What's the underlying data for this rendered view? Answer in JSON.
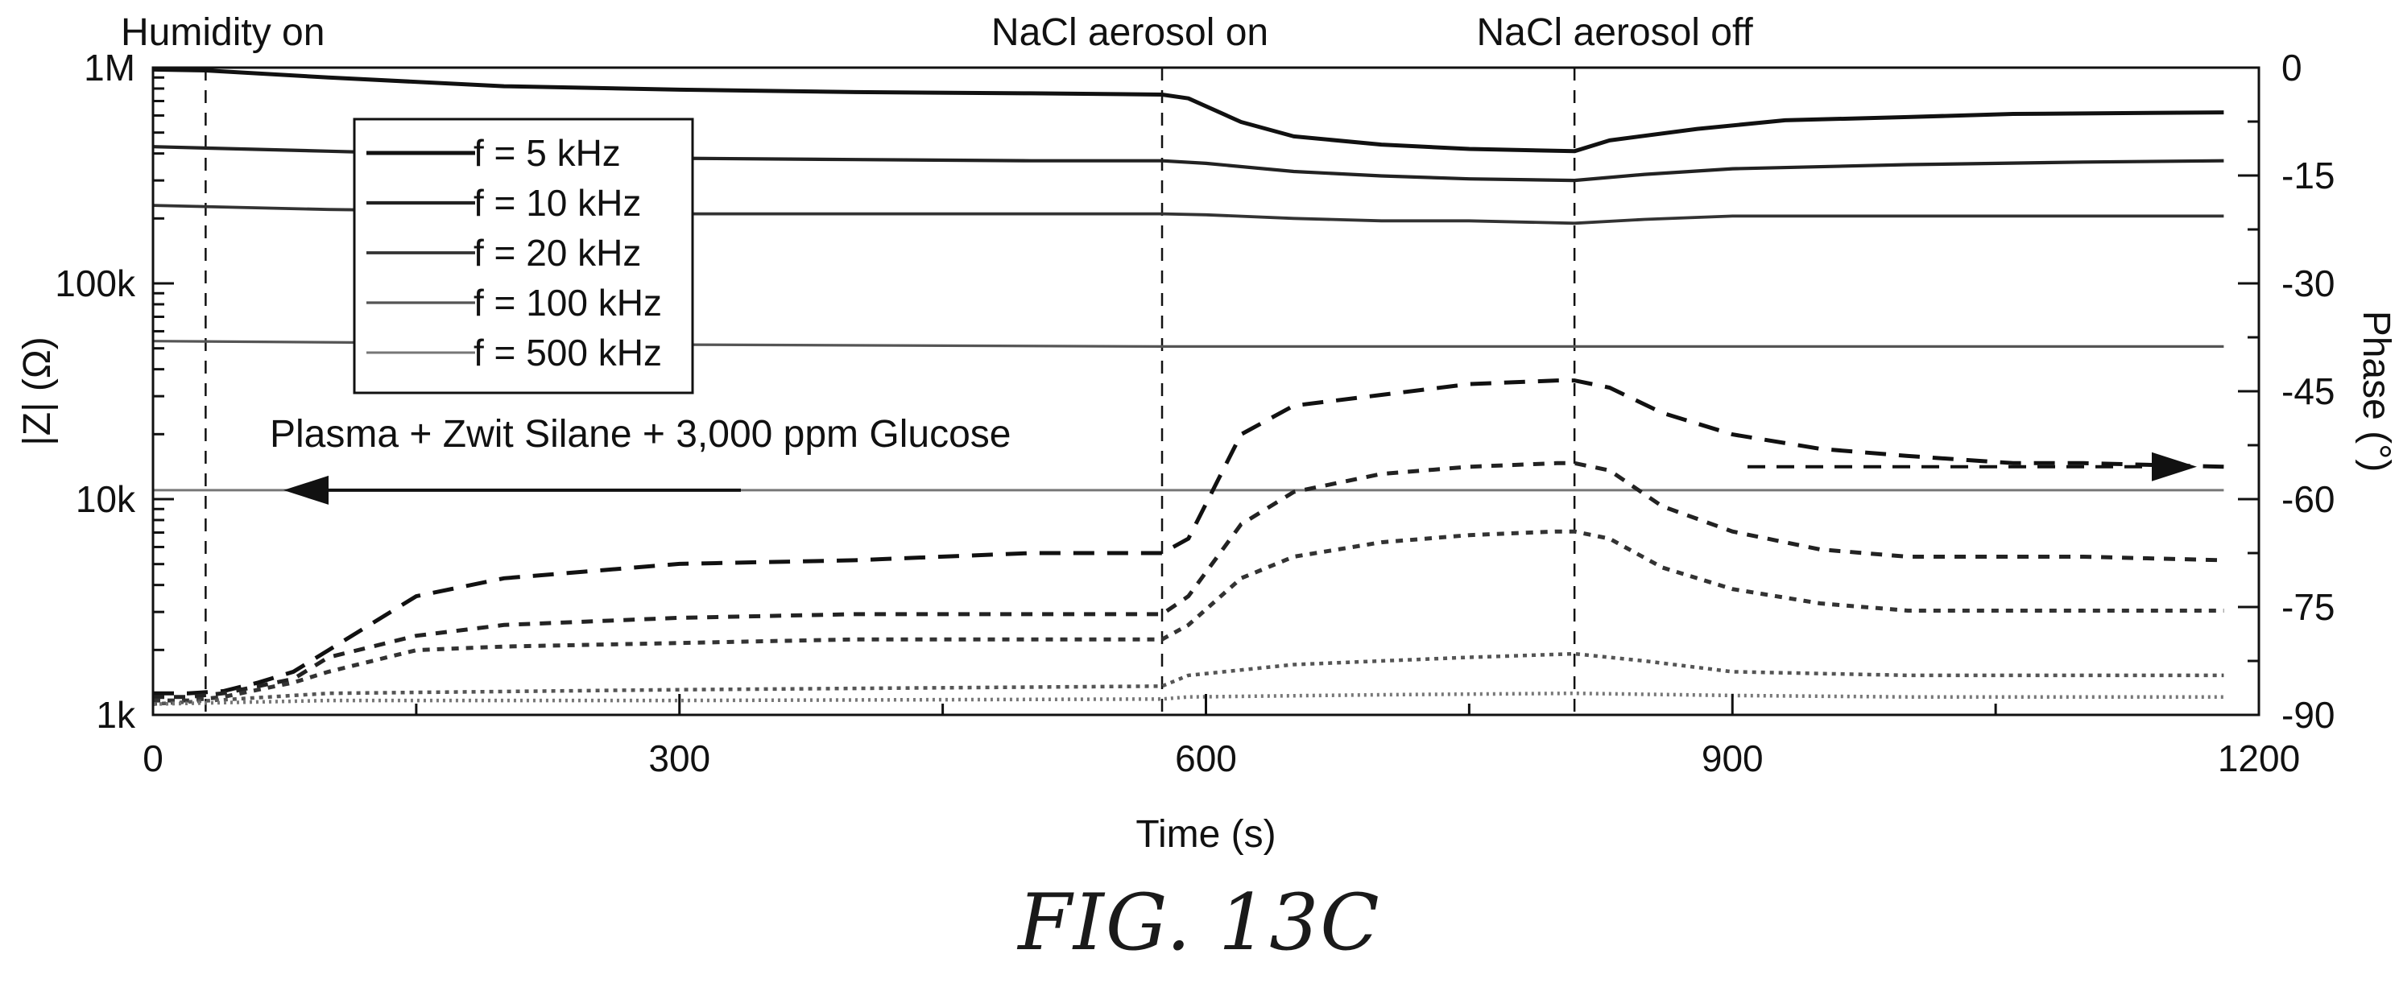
{
  "figure_caption": "FIG. 13C",
  "chart_data": {
    "type": "line",
    "xlabel": "Time (s)",
    "ylabel_left": "|Z| (Ω)",
    "ylabel_right": "Phase (°)",
    "xlim": [
      0,
      1200
    ],
    "ylim_left": [
      1000,
      1000000
    ],
    "left_scale": "log",
    "ylim_right": [
      -90,
      0
    ],
    "x_ticks": [
      0,
      300,
      600,
      900,
      1200
    ],
    "left_ticks": [
      {
        "value": 1000000,
        "label": "1M"
      },
      {
        "value": 100000,
        "label": "100k"
      },
      {
        "value": 10000,
        "label": "10k"
      },
      {
        "value": 1000,
        "label": "1k"
      }
    ],
    "right_ticks": [
      0,
      -15,
      -30,
      -45,
      -60,
      -75,
      -90
    ],
    "grid": false,
    "legend_position": "top-left",
    "annotations": [
      {
        "text": "Humidity on",
        "x": 30
      },
      {
        "text": "NaCl aerosol on",
        "x": 575
      },
      {
        "text": "NaCl aerosol off",
        "x": 810
      }
    ],
    "arrow_labels": [
      {
        "text": "Plasma + Zwit Silane + 3,000 ppm Glucose",
        "direction": "left",
        "axis": "left"
      },
      {
        "text": "",
        "direction": "right",
        "axis": "right"
      }
    ],
    "series": [
      {
        "name": "f = 5 kHz",
        "color": "#111111",
        "impedance": {
          "x": [
            0,
            30,
            100,
            200,
            300,
            400,
            500,
            575,
            590,
            620,
            650,
            700,
            750,
            810,
            830,
            880,
            930,
            1000,
            1060,
            1180
          ],
          "y": [
            980000,
            970000,
            900000,
            820000,
            790000,
            770000,
            760000,
            750000,
            720000,
            560000,
            480000,
            440000,
            420000,
            410000,
            460000,
            520000,
            570000,
            590000,
            610000,
            620000
          ]
        },
        "phase": {
          "x": [
            0,
            20,
            40,
            60,
            80,
            100,
            150,
            200,
            300,
            400,
            500,
            575,
            590,
            620,
            650,
            700,
            750,
            800,
            810,
            830,
            860,
            900,
            950,
            1000,
            1060,
            1100,
            1180
          ],
          "y": [
            -87,
            -87,
            -86.7,
            -85.5,
            -84,
            -81,
            -73.5,
            -71,
            -69,
            -68.5,
            -67.5,
            -67.5,
            -65.5,
            -51,
            -47,
            -45.5,
            -44,
            -43.5,
            -43.5,
            -44.5,
            -48,
            -51,
            -53,
            -54,
            -55,
            -55,
            -55.5
          ]
        }
      },
      {
        "name": "f = 10 kHz",
        "color": "#222222",
        "impedance": {
          "x": [
            0,
            100,
            200,
            300,
            400,
            500,
            575,
            600,
            650,
            700,
            750,
            810,
            850,
            900,
            1000,
            1100,
            1180
          ],
          "y": [
            430000,
            410000,
            390000,
            380000,
            375000,
            370000,
            370000,
            360000,
            330000,
            315000,
            305000,
            300000,
            320000,
            340000,
            355000,
            365000,
            370000
          ]
        },
        "phase": {
          "x": [
            0,
            20,
            40,
            60,
            80,
            100,
            150,
            200,
            300,
            400,
            500,
            575,
            590,
            620,
            650,
            700,
            750,
            800,
            810,
            830,
            860,
            900,
            950,
            1000,
            1060,
            1100,
            1180
          ],
          "y": [
            -87.5,
            -87.5,
            -87,
            -86,
            -85,
            -82,
            -79,
            -77.5,
            -76.5,
            -76,
            -76,
            -76,
            -73.5,
            -63.5,
            -59,
            -56.5,
            -55.5,
            -55,
            -55,
            -56,
            -61,
            -64.5,
            -67,
            -68,
            -68,
            -68,
            -68.5
          ]
        }
      },
      {
        "name": "f = 20 kHz",
        "color": "#333333",
        "impedance": {
          "x": [
            0,
            100,
            200,
            300,
            400,
            500,
            575,
            600,
            650,
            700,
            750,
            810,
            850,
            900,
            1000,
            1100,
            1180
          ],
          "y": [
            230000,
            220000,
            215000,
            210000,
            210000,
            210000,
            210000,
            208000,
            200000,
            195000,
            195000,
            190000,
            198000,
            205000,
            205000,
            205000,
            205000
          ]
        },
        "phase": {
          "x": [
            0,
            20,
            40,
            60,
            80,
            100,
            150,
            200,
            300,
            400,
            500,
            575,
            590,
            620,
            650,
            700,
            750,
            800,
            810,
            830,
            860,
            900,
            950,
            1000,
            1060,
            1100,
            1180
          ],
          "y": [
            -88,
            -88,
            -87.5,
            -86.5,
            -85.5,
            -84,
            -81,
            -80.5,
            -80,
            -79.5,
            -79.5,
            -79.5,
            -77.5,
            -71,
            -68,
            -66,
            -65,
            -64.5,
            -64.5,
            -65.5,
            -69.5,
            -72.5,
            -74.5,
            -75.5,
            -75.5,
            -75.5,
            -75.5
          ]
        }
      },
      {
        "name": "f = 100 kHz",
        "color": "#555555",
        "impedance": {
          "x": [
            0,
            300,
            575,
            800,
            1000,
            1180
          ],
          "y": [
            54000,
            52000,
            51000,
            51000,
            51000,
            51000
          ]
        },
        "phase": {
          "x": [
            0,
            100,
            300,
            575,
            590,
            650,
            750,
            810,
            850,
            900,
            1000,
            1180
          ],
          "y": [
            -88.5,
            -87,
            -86.5,
            -86,
            -84.5,
            -83,
            -82,
            -81.5,
            -82.5,
            -84,
            -84.5,
            -84.5
          ]
        }
      },
      {
        "name": "f = 500 kHz",
        "color": "#777777",
        "impedance": {
          "x": [
            0,
            300,
            575,
            800,
            1000,
            1180
          ],
          "y": [
            11000,
            11000,
            11000,
            11000,
            11000,
            11000
          ]
        },
        "phase": {
          "x": [
            0,
            100,
            300,
            575,
            590,
            700,
            810,
            900,
            1000,
            1180
          ],
          "y": [
            -88.5,
            -88,
            -88,
            -87.8,
            -87.5,
            -87.2,
            -87,
            -87.3,
            -87.5,
            -87.5
          ]
        }
      }
    ]
  }
}
